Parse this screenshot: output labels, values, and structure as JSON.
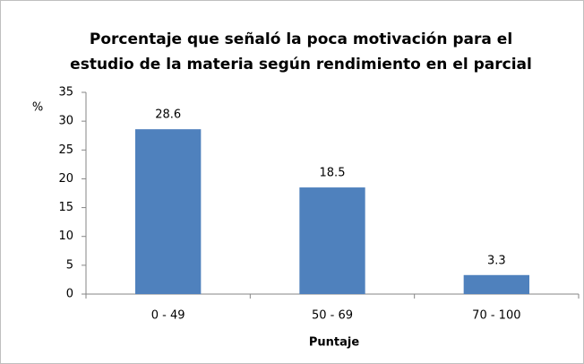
{
  "chart_data": {
    "type": "bar",
    "title": [
      "Porcentaje que señaló la poca motivación para el",
      "estudio de la materia según rendimiento en el parcial"
    ],
    "y_label": "%",
    "x_label": "Puntaje",
    "categories": [
      "0 - 49",
      "50 - 69",
      "70 - 100"
    ],
    "values": [
      28.6,
      18.5,
      3.3
    ],
    "color": "#4f81bd",
    "ylim": [
      0,
      35
    ],
    "yticks": [
      0,
      5,
      10,
      15,
      20,
      25,
      30,
      35
    ],
    "grid": false
  }
}
